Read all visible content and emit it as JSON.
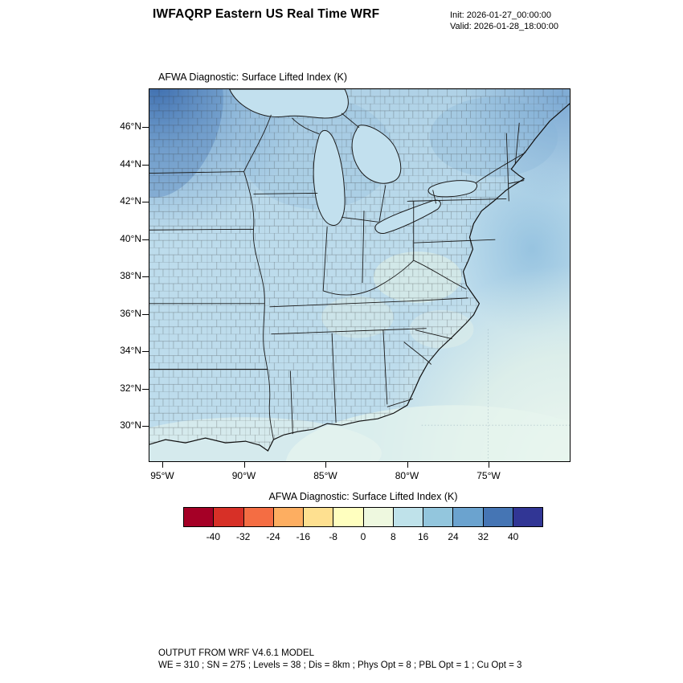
{
  "header": {
    "title": "IWFAQRP Eastern US Real Time WRF",
    "init": "Init: 2026-01-27_00:00:00",
    "valid": "Valid: 2026-01-28_18:00:00"
  },
  "plot": {
    "title": "AFWA Diagnostic: Surface Lifted Index   (K)"
  },
  "axes": {
    "lat": [
      "46°N",
      "44°N",
      "42°N",
      "40°N",
      "38°N",
      "36°N",
      "34°N",
      "32°N",
      "30°N"
    ],
    "lon": [
      "95°W",
      "90°W",
      "85°W",
      "80°W",
      "75°W"
    ]
  },
  "colorbar": {
    "label": "AFWA Diagnostic: Surface Lifted Index  (K)",
    "ticks": [
      "-40",
      "-32",
      "-24",
      "-16",
      "-8",
      "0",
      "8",
      "16",
      "24",
      "32",
      "40"
    ],
    "colors": [
      "#a50026",
      "#d73027",
      "#f46d43",
      "#fdae61",
      "#fee090",
      "#ffffbf",
      "#eef8df",
      "#bfe2ea",
      "#93c6dd",
      "#6ba3cf",
      "#4575b4",
      "#313695"
    ]
  },
  "footer": {
    "line1": "OUTPUT FROM WRF V4.6.1 MODEL",
    "line2": "WE = 310 ; SN = 275 ; Levels = 38 ; Dis = 8km ; Phys Opt = 8 ; PBL Opt = 1 ; Cu Opt = 3"
  },
  "chart_data": {
    "type": "heatmap",
    "title": "AFWA Diagnostic: Surface Lifted Index (K)",
    "units": "K",
    "region": "Eastern US",
    "colorbar_levels": [
      -40,
      -32,
      -24,
      -16,
      -8,
      0,
      8,
      16,
      24,
      32,
      40
    ],
    "colorbar_colors": [
      "#a50026",
      "#d73027",
      "#f46d43",
      "#fdae61",
      "#fee090",
      "#ffffbf",
      "#eef8df",
      "#bfe2ea",
      "#93c6dd",
      "#6ba3cf",
      "#4575b4",
      "#313695"
    ],
    "x_ticks": [
      "95°W",
      "90°W",
      "85°W",
      "80°W",
      "75°W"
    ],
    "y_ticks": [
      "46°N",
      "44°N",
      "42°N",
      "40°N",
      "38°N",
      "36°N",
      "34°N",
      "32°N",
      "30°N"
    ],
    "legend_position": "bottom",
    "field_summary": "Positive (stable) lifted index everywhere shown: deepest blue 24-40 K in the northwest corner and far northeast, light blue 8-24 K over most of the domain, palest 0-8 K offshore to the southeast and along the Gulf coast"
  }
}
